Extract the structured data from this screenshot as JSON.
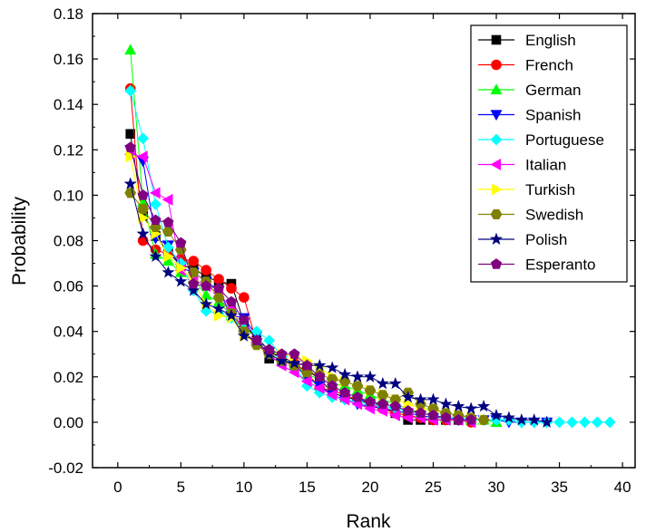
{
  "chart_data": {
    "type": "line",
    "xlabel": "Rank",
    "ylabel": "Probability",
    "xlim": [
      -2,
      41
    ],
    "ylim": [
      -0.02,
      0.18
    ],
    "xticks": [
      0,
      5,
      10,
      15,
      20,
      25,
      30,
      35,
      40
    ],
    "xtick_labels": [
      "0",
      "5",
      "10",
      "15",
      "20",
      "25",
      "30",
      "35",
      "40"
    ],
    "yticks": [
      -0.02,
      0.0,
      0.02,
      0.04,
      0.06,
      0.08,
      0.1,
      0.12,
      0.14,
      0.16,
      0.18
    ],
    "ytick_labels": [
      "-0.02",
      "0.00",
      "0.02",
      "0.04",
      "0.06",
      "0.08",
      "0.10",
      "0.12",
      "0.14",
      "0.16",
      "0.18"
    ],
    "grid": false,
    "legend_position": "top-right",
    "series": [
      {
        "name": "English",
        "color": "#000000",
        "marker": "square",
        "x": [
          1,
          2,
          3,
          4,
          5,
          6,
          7,
          8,
          9,
          10,
          11,
          12,
          13,
          14,
          15,
          16,
          17,
          18,
          19,
          20,
          21,
          22,
          23,
          24,
          25,
          26,
          27,
          28
        ],
        "y": [
          0.127,
          0.091,
          0.082,
          0.075,
          0.069,
          0.068,
          0.064,
          0.062,
          0.061,
          0.044,
          0.036,
          0.028,
          0.027,
          0.025,
          0.023,
          0.019,
          0.013,
          0.011,
          0.01,
          0.009,
          0.007,
          0.004,
          0.001,
          0.001,
          0.001,
          0.001,
          0.001,
          0.001
        ]
      },
      {
        "name": "French",
        "color": "#ff0000",
        "marker": "circle",
        "x": [
          1,
          2,
          3,
          4,
          5,
          6,
          7,
          8,
          9,
          10,
          11,
          12,
          13,
          14,
          15,
          16,
          17,
          18,
          19,
          20,
          21,
          22,
          23,
          24,
          25,
          26,
          27,
          28
        ],
        "y": [
          0.147,
          0.08,
          0.076,
          0.074,
          0.072,
          0.071,
          0.067,
          0.063,
          0.059,
          0.055,
          0.035,
          0.031,
          0.029,
          0.026,
          0.022,
          0.015,
          0.014,
          0.012,
          0.01,
          0.008,
          0.006,
          0.004,
          0.003,
          0.002,
          0.001,
          0.001,
          0.001,
          0.0
        ]
      },
      {
        "name": "German",
        "color": "#00ff00",
        "marker": "triangle-up",
        "x": [
          1,
          2,
          3,
          4,
          5,
          6,
          7,
          8,
          9,
          10,
          11,
          12,
          13,
          14,
          15,
          16,
          17,
          18,
          19,
          20,
          21,
          22,
          23,
          24,
          25,
          26,
          27,
          28,
          29,
          30
        ],
        "y": [
          0.164,
          0.097,
          0.074,
          0.071,
          0.066,
          0.063,
          0.056,
          0.053,
          0.047,
          0.042,
          0.037,
          0.032,
          0.029,
          0.025,
          0.021,
          0.019,
          0.017,
          0.016,
          0.014,
          0.012,
          0.01,
          0.008,
          0.006,
          0.004,
          0.003,
          0.002,
          0.002,
          0.001,
          0.001,
          0.0
        ]
      },
      {
        "name": "Spanish",
        "color": "#0000ff",
        "marker": "triangle-down",
        "x": [
          1,
          2,
          3,
          4,
          5,
          6,
          7,
          8,
          9,
          10,
          11,
          12,
          13,
          14,
          15,
          16,
          17,
          18,
          19,
          20,
          21,
          22,
          23,
          24,
          25,
          26,
          27,
          28,
          29,
          30,
          31,
          32,
          33,
          34
        ],
        "y": [
          0.12,
          0.115,
          0.081,
          0.078,
          0.068,
          0.066,
          0.062,
          0.058,
          0.047,
          0.046,
          0.038,
          0.031,
          0.028,
          0.025,
          0.02,
          0.016,
          0.012,
          0.01,
          0.008,
          0.007,
          0.006,
          0.005,
          0.004,
          0.003,
          0.002,
          0.002,
          0.001,
          0.001,
          0.001,
          0.001,
          0.0,
          0.0,
          0.0,
          0.0
        ]
      },
      {
        "name": "Portuguese",
        "color": "#00ffff",
        "marker": "diamond",
        "x": [
          1,
          2,
          3,
          4,
          5,
          6,
          7,
          8,
          9,
          10,
          11,
          12,
          13,
          14,
          15,
          16,
          17,
          18,
          19,
          20,
          21,
          22,
          23,
          24,
          25,
          26,
          27,
          28,
          29,
          30,
          31,
          32,
          33,
          34,
          35,
          36,
          37,
          38,
          39
        ],
        "y": [
          0.146,
          0.125,
          0.096,
          0.077,
          0.07,
          0.058,
          0.049,
          0.048,
          0.046,
          0.041,
          0.04,
          0.036,
          0.029,
          0.025,
          0.016,
          0.013,
          0.011,
          0.01,
          0.009,
          0.008,
          0.007,
          0.006,
          0.005,
          0.004,
          0.003,
          0.002,
          0.002,
          0.001,
          0.001,
          0.001,
          0.001,
          0.0,
          0.0,
          0.0,
          0.0,
          0.0,
          0.0,
          0.0,
          0.0
        ]
      },
      {
        "name": "Italian",
        "color": "#ff00ff",
        "marker": "triangle-left",
        "x": [
          1,
          2,
          3,
          4,
          5,
          6,
          7,
          8,
          9,
          10,
          11,
          12,
          13,
          14,
          15,
          16,
          17,
          18,
          19,
          20,
          21,
          22,
          23,
          24,
          25,
          26,
          27,
          28
        ],
        "y": [
          0.118,
          0.117,
          0.101,
          0.098,
          0.067,
          0.063,
          0.06,
          0.057,
          0.05,
          0.04,
          0.035,
          0.03,
          0.025,
          0.022,
          0.018,
          0.015,
          0.012,
          0.01,
          0.008,
          0.006,
          0.005,
          0.003,
          0.002,
          0.002,
          0.001,
          0.001,
          0.001,
          0.0
        ]
      },
      {
        "name": "Turkish",
        "color": "#ffff00",
        "marker": "triangle-right",
        "x": [
          1,
          2,
          3,
          4,
          5,
          6,
          7,
          8,
          9,
          10,
          11,
          12,
          13,
          14,
          15,
          16,
          17,
          18,
          19,
          20,
          21,
          22,
          23,
          24,
          25,
          26,
          27,
          28,
          29
        ],
        "y": [
          0.117,
          0.09,
          0.083,
          0.073,
          0.068,
          0.062,
          0.052,
          0.047,
          0.046,
          0.038,
          0.035,
          0.031,
          0.03,
          0.029,
          0.027,
          0.024,
          0.02,
          0.018,
          0.016,
          0.014,
          0.012,
          0.01,
          0.008,
          0.006,
          0.005,
          0.004,
          0.003,
          0.002,
          0.001
        ]
      },
      {
        "name": "Swedish",
        "color": "#808000",
        "marker": "hexagon",
        "x": [
          1,
          2,
          3,
          4,
          5,
          6,
          7,
          8,
          9,
          10,
          11,
          12,
          13,
          14,
          15,
          16,
          17,
          18,
          19,
          20,
          21,
          22,
          23,
          24,
          25,
          26,
          27,
          28,
          29
        ],
        "y": [
          0.101,
          0.094,
          0.086,
          0.084,
          0.076,
          0.066,
          0.062,
          0.055,
          0.048,
          0.04,
          0.034,
          0.03,
          0.027,
          0.025,
          0.022,
          0.021,
          0.019,
          0.018,
          0.016,
          0.014,
          0.012,
          0.01,
          0.013,
          0.008,
          0.006,
          0.004,
          0.003,
          0.002,
          0.001
        ]
      },
      {
        "name": "Polish",
        "color": "#000080",
        "marker": "star",
        "x": [
          1,
          2,
          3,
          4,
          5,
          6,
          7,
          8,
          9,
          10,
          11,
          12,
          13,
          14,
          15,
          16,
          17,
          18,
          19,
          20,
          21,
          22,
          23,
          24,
          25,
          26,
          27,
          28,
          29,
          30,
          31,
          32,
          33,
          34
        ],
        "y": [
          0.105,
          0.083,
          0.073,
          0.066,
          0.062,
          0.058,
          0.052,
          0.05,
          0.047,
          0.038,
          0.036,
          0.03,
          0.027,
          0.026,
          0.025,
          0.025,
          0.024,
          0.021,
          0.02,
          0.02,
          0.017,
          0.017,
          0.011,
          0.01,
          0.01,
          0.008,
          0.007,
          0.006,
          0.007,
          0.003,
          0.002,
          0.001,
          0.001,
          0.0
        ]
      },
      {
        "name": "Esperanto",
        "color": "#800080",
        "marker": "pentagon",
        "x": [
          1,
          2,
          3,
          4,
          5,
          6,
          7,
          8,
          9,
          10,
          11,
          12,
          13,
          14,
          15,
          16,
          17,
          18,
          19,
          20,
          21,
          22,
          23,
          24,
          25,
          26,
          27,
          28
        ],
        "y": [
          0.121,
          0.1,
          0.089,
          0.088,
          0.079,
          0.061,
          0.06,
          0.059,
          0.053,
          0.045,
          0.036,
          0.032,
          0.03,
          0.03,
          0.025,
          0.02,
          0.016,
          0.013,
          0.011,
          0.009,
          0.008,
          0.007,
          0.005,
          0.004,
          0.003,
          0.002,
          0.001,
          0.001
        ]
      }
    ]
  }
}
